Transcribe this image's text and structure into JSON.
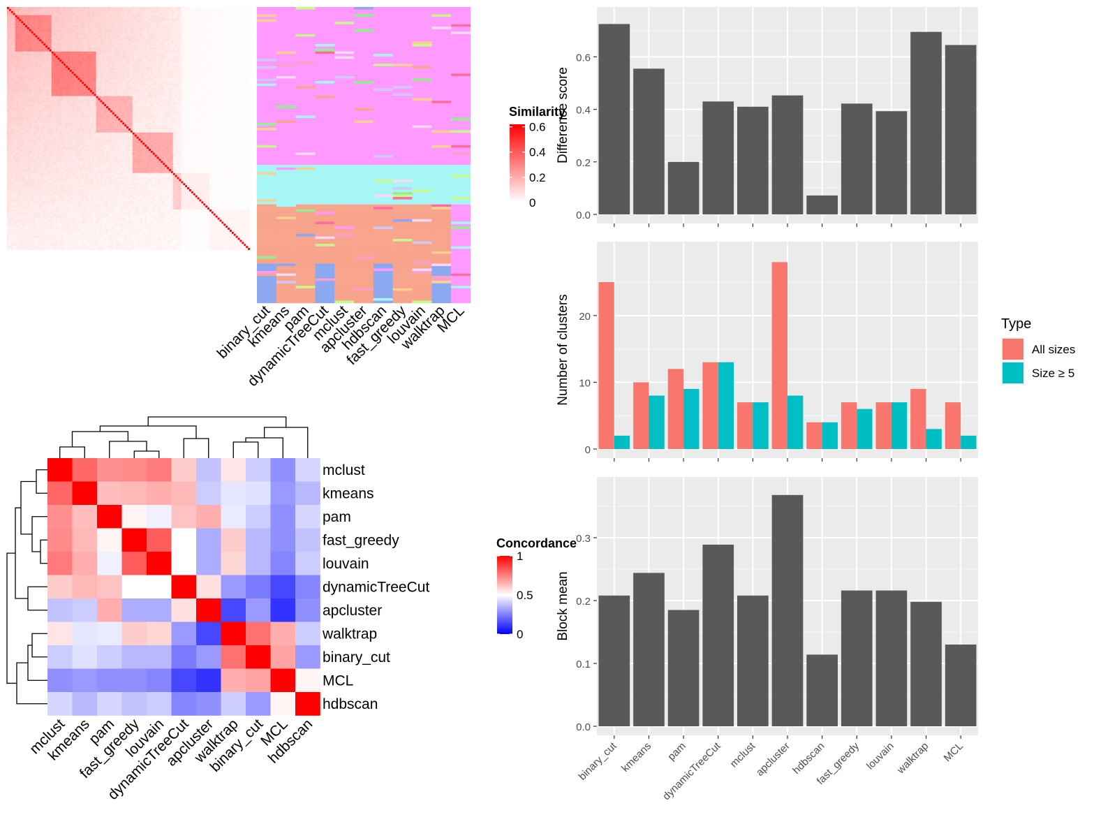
{
  "chart_data": [
    {
      "type": "heatmap",
      "id": "similarity-heatmap",
      "size": 120,
      "legend": {
        "title": "Similarity",
        "ticks": [
          0,
          0.2,
          0.4,
          0.6
        ],
        "colors": {
          "low": "#ffffff",
          "high": "#ff0000"
        }
      }
    },
    {
      "type": "table",
      "id": "cluster-assignment-strip",
      "columns": [
        "binary_cut",
        "kmeans",
        "pam",
        "dynamicTreeCut",
        "mclust",
        "apcluster",
        "hdbscan",
        "fast_greedy",
        "louvain",
        "walktrap",
        "MCL"
      ],
      "palette": [
        "#ff99ff",
        "#f8a48c",
        "#a6f6f6",
        "#d0c8f8",
        "#ff6b9d",
        "#c8f88c",
        "#8ca8f0",
        "#f8d090",
        "#90f090",
        "#f8a0c8",
        "#ffd8f8"
      ]
    },
    {
      "type": "heatmap",
      "id": "concordance-heatmap",
      "rows": [
        "mclust",
        "kmeans",
        "pam",
        "fast_greedy",
        "louvain",
        "dynamicTreeCut",
        "apcluster",
        "walktrap",
        "binary_cut",
        "MCL",
        "hdbscan"
      ],
      "cols": [
        "mclust",
        "kmeans",
        "pam",
        "fast_greedy",
        "louvain",
        "dynamicTreeCut",
        "apcluster",
        "walktrap",
        "binary_cut",
        "MCL",
        "hdbscan"
      ],
      "values": [
        [
          1.0,
          0.8,
          0.72,
          0.73,
          0.76,
          0.6,
          0.38,
          0.55,
          0.4,
          0.28,
          0.42
        ],
        [
          0.8,
          1.0,
          0.63,
          0.64,
          0.66,
          0.64,
          0.4,
          0.45,
          0.44,
          0.3,
          0.36
        ],
        [
          0.72,
          0.63,
          1.0,
          0.52,
          0.47,
          0.62,
          0.66,
          0.46,
          0.4,
          0.28,
          0.42
        ],
        [
          0.73,
          0.64,
          0.52,
          1.0,
          0.82,
          0.5,
          0.34,
          0.6,
          0.36,
          0.28,
          0.38
        ],
        [
          0.76,
          0.66,
          0.47,
          0.82,
          1.0,
          0.5,
          0.34,
          0.58,
          0.36,
          0.26,
          0.4
        ],
        [
          0.6,
          0.64,
          0.62,
          0.5,
          0.5,
          1.0,
          0.56,
          0.3,
          0.24,
          0.14,
          0.26
        ],
        [
          0.38,
          0.4,
          0.66,
          0.34,
          0.34,
          0.56,
          1.0,
          0.14,
          0.3,
          0.1,
          0.28
        ],
        [
          0.55,
          0.45,
          0.46,
          0.6,
          0.58,
          0.3,
          0.14,
          1.0,
          0.78,
          0.66,
          0.4
        ],
        [
          0.4,
          0.44,
          0.4,
          0.36,
          0.36,
          0.24,
          0.3,
          0.78,
          1.0,
          0.68,
          0.3
        ],
        [
          0.28,
          0.3,
          0.28,
          0.28,
          0.26,
          0.14,
          0.1,
          0.66,
          0.68,
          1.0,
          0.52
        ],
        [
          0.42,
          0.36,
          0.42,
          0.38,
          0.4,
          0.26,
          0.28,
          0.4,
          0.3,
          0.52,
          1.0
        ]
      ],
      "legend": {
        "title": "Concordance",
        "ticks": [
          0,
          0.5,
          1
        ],
        "colors": {
          "low": "#0000ff",
          "mid": "#ffffff",
          "high": "#ff0000"
        }
      }
    },
    {
      "type": "bar",
      "id": "difference-score",
      "categories": [
        "binary_cut",
        "kmeans",
        "pam",
        "dynamicTreeCut",
        "mclust",
        "apcluster",
        "hdbscan",
        "fast_greedy",
        "louvain",
        "walktrap",
        "MCL"
      ],
      "values": [
        0.725,
        0.555,
        0.2,
        0.43,
        0.41,
        0.453,
        0.072,
        0.422,
        0.393,
        0.695,
        0.645
      ],
      "ylabel": "Difference score",
      "ylim": [
        0,
        0.75
      ],
      "yticks": [
        0.0,
        0.2,
        0.4,
        0.6
      ],
      "grid": true,
      "color": "#595959"
    },
    {
      "type": "bar",
      "id": "number-of-clusters",
      "categories": [
        "binary_cut",
        "kmeans",
        "pam",
        "dynamicTreeCut",
        "mclust",
        "apcluster",
        "hdbscan",
        "fast_greedy",
        "louvain",
        "walktrap",
        "MCL"
      ],
      "series": [
        {
          "name": "All sizes",
          "values": [
            25,
            10,
            12,
            13,
            7,
            28,
            4,
            7,
            7,
            9,
            7
          ],
          "color": "#f8766d"
        },
        {
          "name": "Size ≥ 5",
          "values": [
            2,
            8,
            9,
            13,
            7,
            8,
            4,
            6,
            7,
            3,
            2
          ],
          "color": "#00bfc4"
        }
      ],
      "ylabel": "Number of clusters",
      "ylim": [
        0,
        29.5
      ],
      "yticks": [
        0,
        10,
        20
      ],
      "grid": true,
      "legend": {
        "title": "Type",
        "position": "right"
      }
    },
    {
      "type": "bar",
      "id": "block-mean",
      "categories": [
        "binary_cut",
        "kmeans",
        "pam",
        "dynamicTreeCut",
        "mclust",
        "apcluster",
        "hdbscan",
        "fast_greedy",
        "louvain",
        "walktrap",
        "MCL"
      ],
      "values": [
        0.208,
        0.244,
        0.185,
        0.289,
        0.208,
        0.368,
        0.114,
        0.216,
        0.216,
        0.198,
        0.13
      ],
      "ylabel": "Block mean",
      "ylim": [
        0,
        0.38
      ],
      "yticks": [
        0.0,
        0.1,
        0.2,
        0.3
      ],
      "grid": true,
      "color": "#595959"
    }
  ]
}
